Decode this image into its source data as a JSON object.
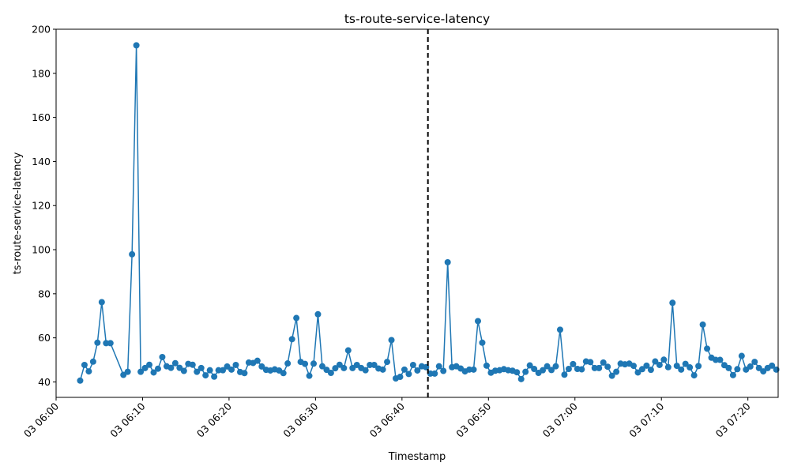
{
  "chart_data": {
    "type": "line",
    "title": "ts-route-service-latency",
    "xlabel": "Timestamp",
    "ylabel": "ts-route-service-latency",
    "xlim": [
      "2024-01-03T06:00:00",
      "2024-01-03T07:23:30"
    ],
    "ylim": [
      33,
      200
    ],
    "grid": false,
    "legend": "none",
    "markers": true,
    "x_ticks": [
      {
        "value": "06:00",
        "label": "03 06:00"
      },
      {
        "value": "06:10",
        "label": "03 06:10"
      },
      {
        "value": "06:20",
        "label": "03 06:20"
      },
      {
        "value": "06:30",
        "label": "03 06:30"
      },
      {
        "value": "06:40",
        "label": "03 06:40"
      },
      {
        "value": "06:50",
        "label": "03 06:50"
      },
      {
        "value": "07:00",
        "label": "03 07:00"
      },
      {
        "value": "07:10",
        "label": "03 07:10"
      },
      {
        "value": "07:20",
        "label": "03 07:20"
      }
    ],
    "y_ticks": [
      40,
      60,
      80,
      100,
      120,
      140,
      160,
      180,
      200
    ],
    "vline": {
      "x": "06:43",
      "style": "dashed",
      "color": "#000000"
    },
    "colors": {
      "series": "#1f77b4",
      "vline": "#000000"
    },
    "series": [
      {
        "x": [
          "06:02:47",
          "06:03:17",
          "06:03:47",
          "06:04:17",
          "06:04:47",
          "06:05:17",
          "06:05:47",
          "06:06:17",
          "06:07:47",
          "06:08:17",
          "06:08:47",
          "06:09:17",
          "06:09:47",
          "06:10:17",
          "06:10:47",
          "06:11:17",
          "06:11:47",
          "06:12:17",
          "06:12:47",
          "06:13:17",
          "06:13:47",
          "06:14:17",
          "06:14:47",
          "06:15:17",
          "06:15:47",
          "06:16:17",
          "06:16:47",
          "06:17:17",
          "06:17:47",
          "06:18:17",
          "06:18:47",
          "06:19:17",
          "06:19:47",
          "06:20:17",
          "06:20:47",
          "06:21:17",
          "06:21:47",
          "06:22:17",
          "06:22:47",
          "06:23:17",
          "06:23:47",
          "06:24:17",
          "06:24:47",
          "06:25:17",
          "06:25:47",
          "06:26:17",
          "06:26:47",
          "06:27:17",
          "06:27:47",
          "06:28:17",
          "06:28:47",
          "06:29:17",
          "06:29:47",
          "06:30:17",
          "06:30:47",
          "06:31:17",
          "06:31:47",
          "06:32:17",
          "06:32:47",
          "06:33:17",
          "06:33:47",
          "06:34:17",
          "06:34:47",
          "06:35:17",
          "06:35:47",
          "06:36:17",
          "06:36:47",
          "06:37:17",
          "06:37:47",
          "06:38:17",
          "06:38:47",
          "06:39:17",
          "06:39:47",
          "06:40:17",
          "06:40:47",
          "06:41:17",
          "06:41:47",
          "06:42:17",
          "06:42:47",
          "06:43:17",
          "06:43:47",
          "06:44:17",
          "06:44:47",
          "06:45:17",
          "06:45:47",
          "06:46:17",
          "06:46:47",
          "06:47:17",
          "06:47:47",
          "06:48:17",
          "06:48:47",
          "06:49:17",
          "06:49:47",
          "06:50:17",
          "06:50:47",
          "06:51:17",
          "06:51:47",
          "06:52:17",
          "06:52:47",
          "06:53:17",
          "06:53:47",
          "06:54:17",
          "06:54:47",
          "06:55:17",
          "06:55:47",
          "06:56:17",
          "06:56:47",
          "06:57:17",
          "06:57:47",
          "06:58:17",
          "06:58:47",
          "06:59:17",
          "06:59:47",
          "07:00:17",
          "07:00:47",
          "07:01:17",
          "07:01:47",
          "07:02:17",
          "07:02:47",
          "07:03:17",
          "07:03:47",
          "07:04:17",
          "07:04:47",
          "07:05:17",
          "07:05:47",
          "07:06:17",
          "07:06:47",
          "07:07:17",
          "07:07:47",
          "07:08:17",
          "07:08:47",
          "07:09:17",
          "07:09:47",
          "07:10:17",
          "07:10:47",
          "07:11:17",
          "07:11:47",
          "07:12:17",
          "07:12:47",
          "07:13:17",
          "07:13:47",
          "07:14:17",
          "07:14:47",
          "07:15:17",
          "07:15:47",
          "07:16:17",
          "07:16:47",
          "07:17:17",
          "07:17:47",
          "07:18:17",
          "07:18:47",
          "07:19:17",
          "07:19:47",
          "07:20:17",
          "07:20:47",
          "07:21:17",
          "07:21:47",
          "07:22:17",
          "07:22:47",
          "07:23:17"
        ],
        "values": [
          40.6,
          47.7,
          44.8,
          49.2,
          57.8,
          76.2,
          57.6,
          57.6,
          43.2,
          44.6,
          97.9,
          192.7,
          44.6,
          46.3,
          47.8,
          44.3,
          46.0,
          51.3,
          47.1,
          46.4,
          48.5,
          46.4,
          45.0,
          48.2,
          47.8,
          44.6,
          46.3,
          43.0,
          45.3,
          42.4,
          45.3,
          45.3,
          47.0,
          45.6,
          47.7,
          44.5,
          44.0,
          48.8,
          48.6,
          49.6,
          47.0,
          45.5,
          45.2,
          45.7,
          45.2,
          44.0,
          48.4,
          59.4,
          69.0,
          49.1,
          48.2,
          42.8,
          48.3,
          70.7,
          47.1,
          45.5,
          44.1,
          46.2,
          47.8,
          46.3,
          54.3,
          46.3,
          47.7,
          46.3,
          45.3,
          47.7,
          47.7,
          46.1,
          45.6,
          49.1,
          59.0,
          41.6,
          42.3,
          45.6,
          43.6,
          47.7,
          45.2,
          47.1,
          46.7,
          43.8,
          43.8,
          47.1,
          45.0,
          94.3,
          46.7,
          47.1,
          46.1,
          44.8,
          45.6,
          45.6,
          67.6,
          57.8,
          47.4,
          44.2,
          45.1,
          45.3,
          45.8,
          45.3,
          45.1,
          44.4,
          41.3,
          44.6,
          47.5,
          45.9,
          44.1,
          45.3,
          47.1,
          45.4,
          47.1,
          63.7,
          43.3,
          45.9,
          48.1,
          45.9,
          45.7,
          49.3,
          49.0,
          46.3,
          46.3,
          48.8,
          46.9,
          42.8,
          44.6,
          48.3,
          48.0,
          48.3,
          47.3,
          44.3,
          45.8,
          47.4,
          45.5,
          49.3,
          47.7,
          50.1,
          46.7,
          75.9,
          47.3,
          45.6,
          48.2,
          46.6,
          43.0,
          47.2,
          66.0,
          55.1,
          51.0,
          50.0,
          50.0,
          47.6,
          46.3,
          43.1,
          45.8,
          51.8,
          45.6,
          47.0,
          49.1,
          46.3,
          44.8,
          46.3,
          47.4,
          45.6
        ]
      }
    ]
  }
}
